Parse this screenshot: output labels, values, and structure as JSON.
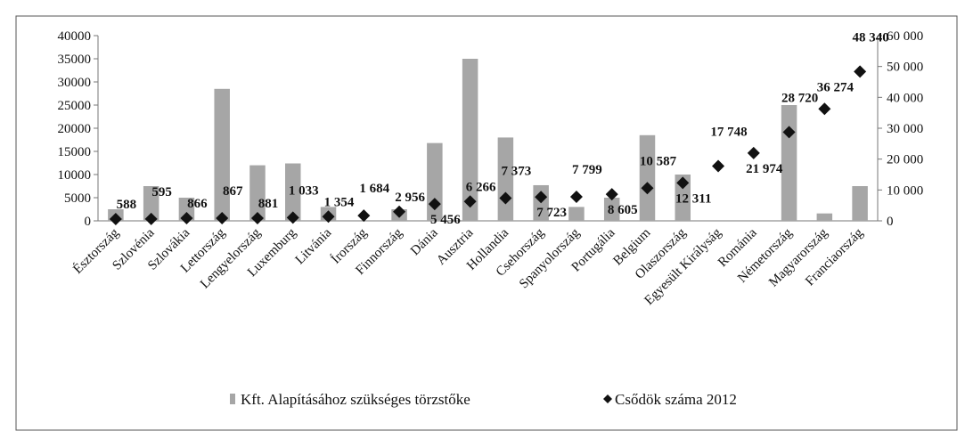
{
  "chart_data": {
    "type": "bar",
    "categories": [
      "Észtország",
      "Szlovénia",
      "Szlovákia",
      "Lettország",
      "Lengyelország",
      "Luxemburg",
      "Litvánia",
      "Írország",
      "Finnország",
      "Dánia",
      "Ausztria",
      "Hollandia",
      "Csehország",
      "Spanyolország",
      "Portugália",
      "Belgium",
      "Olaszország",
      "Egyesült Királyság",
      "Románia",
      "Németország",
      "Magyarország",
      "Franciaország"
    ],
    "series": [
      {
        "name": "Kft. Alapításához szükséges törzstőke",
        "type": "bar",
        "color": "#a6a6a6",
        "values": [
          2500,
          7500,
          5000,
          28500,
          12000,
          12400,
          3000,
          0,
          2500,
          16800,
          35000,
          18000,
          7700,
          3000,
          5000,
          18500,
          10000,
          0,
          0,
          25000,
          1600,
          7500
        ]
      },
      {
        "name": "Csődök száma 2012",
        "type": "scatter",
        "axis": "y2",
        "color": "#111111",
        "values": [
          588,
          595,
          866,
          867,
          881,
          1033,
          1354,
          1684,
          2956,
          5456,
          6266,
          7373,
          7723,
          7799,
          8605,
          10587,
          12311,
          17748,
          21974,
          28720,
          36274,
          48340
        ],
        "value_labels": [
          "588",
          "595",
          "866",
          "867",
          "881",
          "1 033",
          "1 354",
          "1 684",
          "2 956",
          "5 456",
          "6 266",
          "7 373",
          "7 723",
          "7 799",
          "8 605",
          "10 587",
          "12 311",
          "17 748",
          "21 974",
          "28 720",
          "36 274",
          "48 340"
        ]
      }
    ],
    "ylim": [
      0,
      40000
    ],
    "yticks": [
      0,
      5000,
      10000,
      15000,
      20000,
      25000,
      30000,
      35000,
      40000
    ],
    "y2lim": [
      0,
      60000
    ],
    "y2ticks": [
      0,
      {
        "value": 10000,
        "label": "10 000"
      },
      {
        "value": 20000,
        "label": "20 000"
      },
      {
        "value": 30000,
        "label": "30 000"
      },
      {
        "value": 40000,
        "label": "40 000"
      },
      {
        "value": 50000,
        "label": "50 000"
      },
      {
        "value": 60000,
        "label": "60 000"
      }
    ],
    "legend": "bottom"
  }
}
